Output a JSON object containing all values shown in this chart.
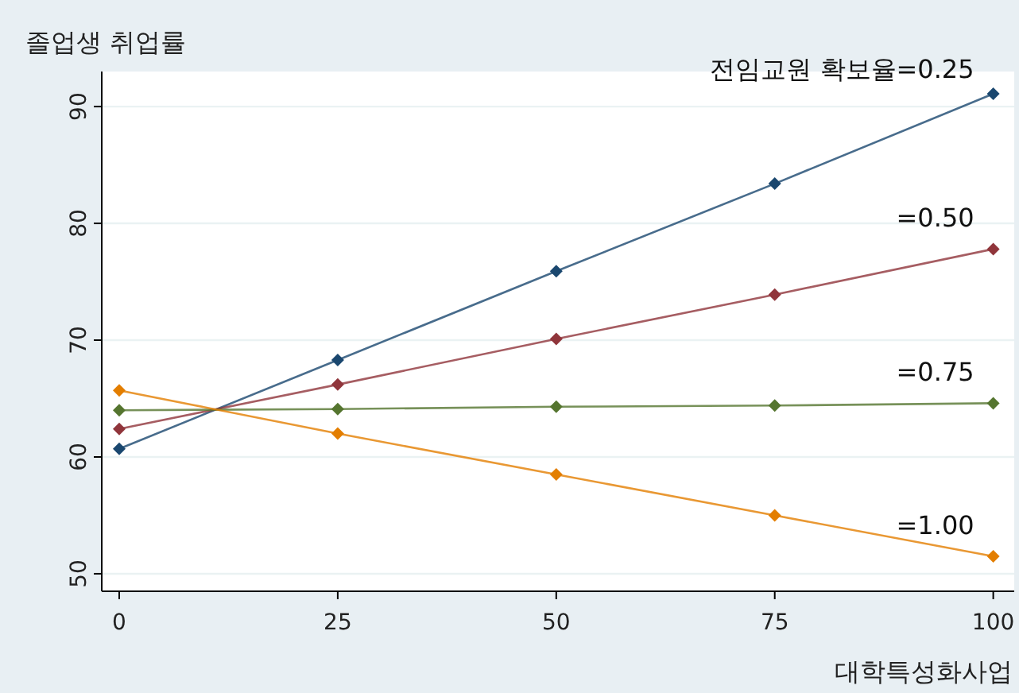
{
  "chart_data": {
    "type": "line",
    "ylabel": "졸업생 취업률",
    "xlabel": "대학특성화사업",
    "x": [
      0,
      25,
      50,
      75,
      100
    ],
    "xlim": [
      -2,
      102.4
    ],
    "ylim": [
      48.5,
      93
    ],
    "xticks": [
      0,
      25,
      50,
      75,
      100
    ],
    "yticks": [
      50,
      60,
      70,
      80,
      90
    ],
    "grid": "y",
    "marker": "diamond",
    "line_style": "solid",
    "series": [
      {
        "name": "전임교원 확보율=0.25",
        "color": "#1a476f",
        "values": [
          60.7,
          68.3,
          75.9,
          83.4,
          91.1
        ]
      },
      {
        "name": "=0.50",
        "color": "#90353b",
        "values": [
          62.4,
          66.2,
          70.1,
          73.9,
          77.8
        ]
      },
      {
        "name": "=0.75",
        "color": "#55752f",
        "values": [
          64.0,
          64.1,
          64.3,
          64.4,
          64.6
        ]
      },
      {
        "name": "=1.00",
        "color": "#e37e00",
        "values": [
          65.7,
          62.0,
          58.5,
          55.0,
          51.5
        ]
      }
    ]
  }
}
